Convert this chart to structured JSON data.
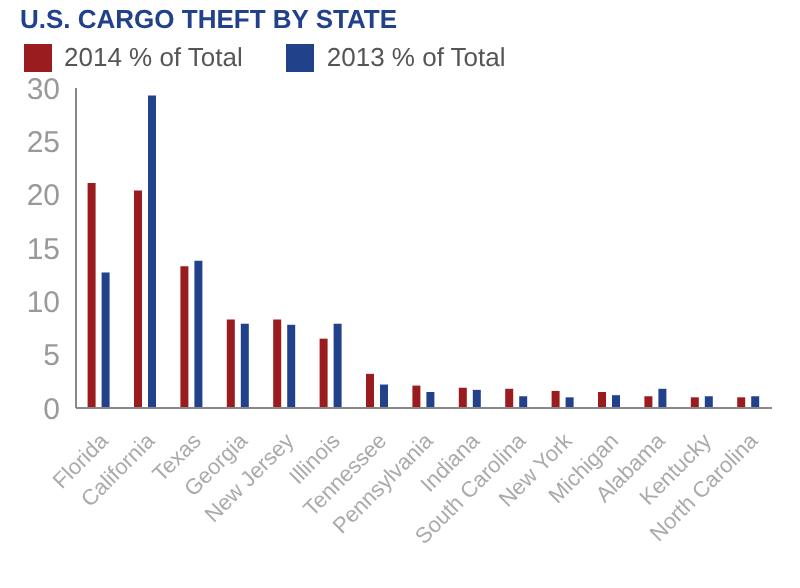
{
  "chart_data": {
    "type": "bar",
    "title": "U.S. CARGO THEFT BY STATE",
    "categories": [
      "Florida",
      "California",
      "Texas",
      "Georgia",
      "New Jersey",
      "Illinois",
      "Tennessee",
      "Pennsylvania",
      "Indiana",
      "South Carolina",
      "New York",
      "Michigan",
      "Alabama",
      "Kentucky",
      "North Carolina"
    ],
    "series": [
      {
        "name": "2014 % of Total",
        "color": "#9b1c1f",
        "values": [
          21.1,
          20.4,
          13.3,
          8.3,
          8.3,
          6.5,
          3.2,
          2.1,
          1.9,
          1.8,
          1.6,
          1.5,
          1.1,
          1.0,
          1.0
        ]
      },
      {
        "name": "2013 % of Total",
        "color": "#21418a",
        "values": [
          12.7,
          29.3,
          13.8,
          7.9,
          7.8,
          7.9,
          2.2,
          1.5,
          1.7,
          1.1,
          1.0,
          1.2,
          1.8,
          1.1,
          1.1
        ]
      }
    ],
    "ylim": [
      0,
      30
    ],
    "yticks": [
      0,
      5,
      10,
      15,
      20,
      25,
      30
    ],
    "grid": false,
    "legend": "top left"
  }
}
